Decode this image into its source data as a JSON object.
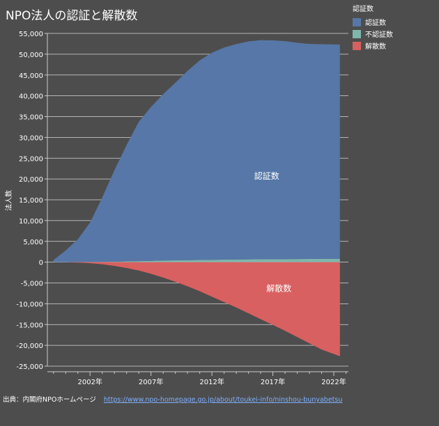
{
  "title": "NPO法人の認証と解散数",
  "legend": {
    "title": "認証数",
    "items": [
      {
        "label": "認証数",
        "color": "#5677a7"
      },
      {
        "label": "不認証数",
        "color": "#7fb6ac"
      },
      {
        "label": "解散数",
        "color": "#d96060"
      }
    ]
  },
  "source": {
    "label": "出典：内閣府NPOホームページ",
    "url": "https://www.npo-homepage.go.jp/about/toukei-info/ninshou-bunyabetsu"
  },
  "chart_data": {
    "type": "area",
    "title": "NPO法人の認証と解散数",
    "ylabel": "法人数",
    "xlabel": "",
    "ylim": [
      -25000,
      55000
    ],
    "yticks": [
      55000,
      50000,
      45000,
      40000,
      35000,
      30000,
      25000,
      20000,
      15000,
      10000,
      5000,
      0,
      -5000,
      -10000,
      -15000,
      -20000,
      -25000
    ],
    "ytick_labels": [
      "55,000",
      "50,000",
      "45,000",
      "40,000",
      "35,000",
      "30,000",
      "25,000",
      "20,000",
      "15,000",
      "10,000",
      "5,000",
      "0",
      "-5,000",
      "-10,000",
      "-15,000",
      "-20,000",
      "-25,000"
    ],
    "xticks": [
      2002,
      2007,
      2012,
      2017,
      2022
    ],
    "xtick_labels": [
      "2002年",
      "2007年",
      "2012年",
      "2017年",
      "2022年"
    ],
    "xlim": [
      1998.5,
      2023.2
    ],
    "grid": true,
    "legend_position": "top-right",
    "x": [
      1999,
      2000,
      2001,
      2002,
      2003,
      2004,
      2005,
      2006,
      2007,
      2008,
      2009,
      2010,
      2011,
      2012,
      2013,
      2014,
      2015,
      2016,
      2017,
      2018,
      2019,
      2020,
      2021,
      2022.5
    ],
    "series": [
      {
        "name": "認証数",
        "color": "#5677a7",
        "values": [
          500,
          2800,
          5500,
          9500,
          15500,
          22000,
          28000,
          33500,
          37000,
          40000,
          42700,
          45500,
          48000,
          49800,
          51000,
          51800,
          52400,
          52700,
          52600,
          52400,
          52000,
          51700,
          51600,
          51500
        ]
      },
      {
        "name": "不認証数",
        "color": "#7fb6ac",
        "values": [
          0,
          0,
          10,
          30,
          60,
          100,
          180,
          260,
          330,
          390,
          440,
          480,
          520,
          560,
          600,
          640,
          670,
          700,
          720,
          740,
          760,
          780,
          800,
          820
        ]
      },
      {
        "name": "解散数",
        "color": "#d96060",
        "values": [
          0,
          -30,
          -100,
          -250,
          -500,
          -900,
          -1400,
          -2000,
          -2800,
          -3700,
          -4700,
          -5800,
          -7000,
          -8300,
          -9600,
          -10900,
          -12300,
          -13700,
          -15100,
          -16500,
          -18000,
          -19500,
          -21000,
          -22600
        ]
      }
    ],
    "annotations": [
      {
        "text": "認証数",
        "x": 2016.5,
        "y": 20000
      },
      {
        "text": "解散数",
        "x": 2017.5,
        "y": -7000
      }
    ]
  }
}
